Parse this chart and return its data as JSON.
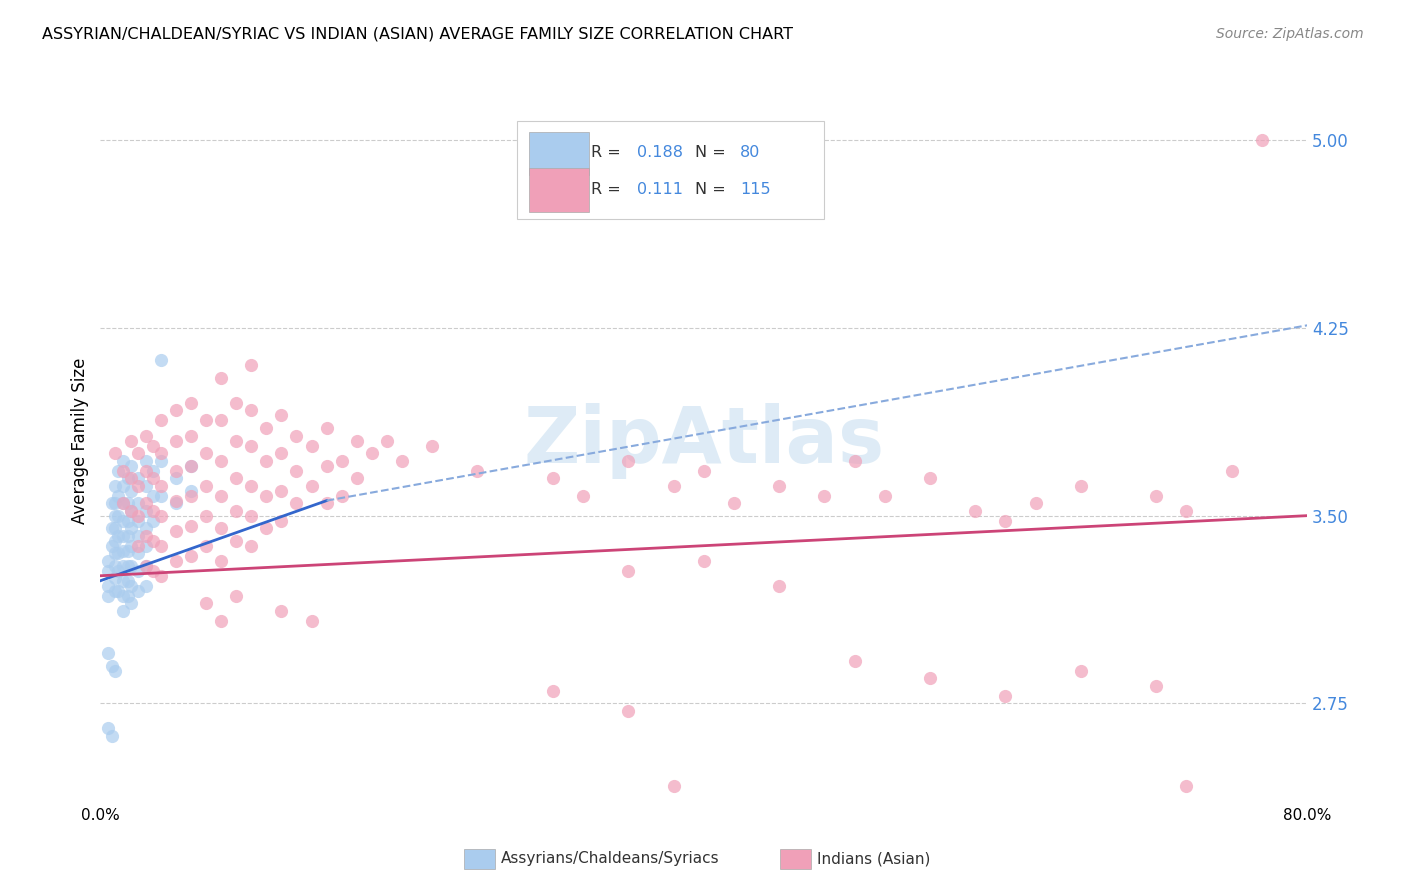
{
  "title": "ASSYRIAN/CHALDEAN/SYRIAC VS INDIAN (ASIAN) AVERAGE FAMILY SIZE CORRELATION CHART",
  "source": "Source: ZipAtlas.com",
  "ylabel": "Average Family Size",
  "ytick_labels": [
    "2.75",
    "3.50",
    "4.25",
    "5.00"
  ],
  "ytick_vals": [
    2.75,
    3.5,
    4.25,
    5.0
  ],
  "xlim": [
    0.0,
    0.8
  ],
  "ylim": [
    2.35,
    5.25
  ],
  "watermark": "ZipAtlas",
  "blue_color": "#aaccee",
  "pink_color": "#f0a0b8",
  "blue_solid_color": "#3366cc",
  "blue_dash_color": "#88aadd",
  "pink_line_color": "#cc4477",
  "blue_scatter": [
    [
      0.005,
      3.32
    ],
    [
      0.005,
      3.28
    ],
    [
      0.005,
      3.22
    ],
    [
      0.005,
      3.18
    ],
    [
      0.008,
      3.55
    ],
    [
      0.008,
      3.45
    ],
    [
      0.008,
      3.38
    ],
    [
      0.01,
      3.62
    ],
    [
      0.01,
      3.55
    ],
    [
      0.01,
      3.5
    ],
    [
      0.01,
      3.45
    ],
    [
      0.01,
      3.4
    ],
    [
      0.01,
      3.35
    ],
    [
      0.01,
      3.3
    ],
    [
      0.01,
      3.25
    ],
    [
      0.01,
      3.2
    ],
    [
      0.012,
      3.68
    ],
    [
      0.012,
      3.58
    ],
    [
      0.012,
      3.5
    ],
    [
      0.012,
      3.42
    ],
    [
      0.012,
      3.35
    ],
    [
      0.012,
      3.28
    ],
    [
      0.012,
      3.2
    ],
    [
      0.015,
      3.72
    ],
    [
      0.015,
      3.62
    ],
    [
      0.015,
      3.55
    ],
    [
      0.015,
      3.48
    ],
    [
      0.015,
      3.42
    ],
    [
      0.015,
      3.36
    ],
    [
      0.015,
      3.3
    ],
    [
      0.015,
      3.24
    ],
    [
      0.015,
      3.18
    ],
    [
      0.015,
      3.12
    ],
    [
      0.018,
      3.65
    ],
    [
      0.018,
      3.55
    ],
    [
      0.018,
      3.48
    ],
    [
      0.018,
      3.42
    ],
    [
      0.018,
      3.36
    ],
    [
      0.018,
      3.3
    ],
    [
      0.018,
      3.24
    ],
    [
      0.018,
      3.18
    ],
    [
      0.02,
      3.7
    ],
    [
      0.02,
      3.6
    ],
    [
      0.02,
      3.52
    ],
    [
      0.02,
      3.45
    ],
    [
      0.02,
      3.38
    ],
    [
      0.02,
      3.3
    ],
    [
      0.02,
      3.22
    ],
    [
      0.02,
      3.15
    ],
    [
      0.025,
      3.65
    ],
    [
      0.025,
      3.55
    ],
    [
      0.025,
      3.48
    ],
    [
      0.025,
      3.42
    ],
    [
      0.025,
      3.35
    ],
    [
      0.025,
      3.28
    ],
    [
      0.025,
      3.2
    ],
    [
      0.03,
      3.72
    ],
    [
      0.03,
      3.62
    ],
    [
      0.03,
      3.52
    ],
    [
      0.03,
      3.45
    ],
    [
      0.03,
      3.38
    ],
    [
      0.03,
      3.3
    ],
    [
      0.03,
      3.22
    ],
    [
      0.035,
      3.68
    ],
    [
      0.035,
      3.58
    ],
    [
      0.035,
      3.48
    ],
    [
      0.04,
      4.12
    ],
    [
      0.04,
      3.72
    ],
    [
      0.04,
      3.58
    ],
    [
      0.05,
      3.65
    ],
    [
      0.05,
      3.55
    ],
    [
      0.06,
      3.7
    ],
    [
      0.06,
      3.6
    ],
    [
      0.005,
      2.95
    ],
    [
      0.008,
      2.9
    ],
    [
      0.01,
      2.88
    ],
    [
      0.005,
      2.65
    ],
    [
      0.008,
      2.62
    ]
  ],
  "pink_scatter": [
    [
      0.01,
      3.75
    ],
    [
      0.015,
      3.68
    ],
    [
      0.015,
      3.55
    ],
    [
      0.02,
      3.8
    ],
    [
      0.02,
      3.65
    ],
    [
      0.02,
      3.52
    ],
    [
      0.025,
      3.75
    ],
    [
      0.025,
      3.62
    ],
    [
      0.025,
      3.5
    ],
    [
      0.025,
      3.38
    ],
    [
      0.03,
      3.82
    ],
    [
      0.03,
      3.68
    ],
    [
      0.03,
      3.55
    ],
    [
      0.03,
      3.42
    ],
    [
      0.03,
      3.3
    ],
    [
      0.035,
      3.78
    ],
    [
      0.035,
      3.65
    ],
    [
      0.035,
      3.52
    ],
    [
      0.035,
      3.4
    ],
    [
      0.035,
      3.28
    ],
    [
      0.04,
      3.88
    ],
    [
      0.04,
      3.75
    ],
    [
      0.04,
      3.62
    ],
    [
      0.04,
      3.5
    ],
    [
      0.04,
      3.38
    ],
    [
      0.04,
      3.26
    ],
    [
      0.05,
      3.92
    ],
    [
      0.05,
      3.8
    ],
    [
      0.05,
      3.68
    ],
    [
      0.05,
      3.56
    ],
    [
      0.05,
      3.44
    ],
    [
      0.05,
      3.32
    ],
    [
      0.06,
      3.95
    ],
    [
      0.06,
      3.82
    ],
    [
      0.06,
      3.7
    ],
    [
      0.06,
      3.58
    ],
    [
      0.06,
      3.46
    ],
    [
      0.06,
      3.34
    ],
    [
      0.07,
      3.88
    ],
    [
      0.07,
      3.75
    ],
    [
      0.07,
      3.62
    ],
    [
      0.07,
      3.5
    ],
    [
      0.07,
      3.38
    ],
    [
      0.08,
      4.05
    ],
    [
      0.08,
      3.88
    ],
    [
      0.08,
      3.72
    ],
    [
      0.08,
      3.58
    ],
    [
      0.08,
      3.45
    ],
    [
      0.08,
      3.32
    ],
    [
      0.09,
      3.95
    ],
    [
      0.09,
      3.8
    ],
    [
      0.09,
      3.65
    ],
    [
      0.09,
      3.52
    ],
    [
      0.09,
      3.4
    ],
    [
      0.1,
      4.1
    ],
    [
      0.1,
      3.92
    ],
    [
      0.1,
      3.78
    ],
    [
      0.1,
      3.62
    ],
    [
      0.1,
      3.5
    ],
    [
      0.1,
      3.38
    ],
    [
      0.11,
      3.85
    ],
    [
      0.11,
      3.72
    ],
    [
      0.11,
      3.58
    ],
    [
      0.11,
      3.45
    ],
    [
      0.12,
      3.9
    ],
    [
      0.12,
      3.75
    ],
    [
      0.12,
      3.6
    ],
    [
      0.12,
      3.48
    ],
    [
      0.13,
      3.82
    ],
    [
      0.13,
      3.68
    ],
    [
      0.13,
      3.55
    ],
    [
      0.14,
      3.78
    ],
    [
      0.14,
      3.62
    ],
    [
      0.15,
      3.85
    ],
    [
      0.15,
      3.7
    ],
    [
      0.15,
      3.55
    ],
    [
      0.16,
      3.72
    ],
    [
      0.16,
      3.58
    ],
    [
      0.17,
      3.8
    ],
    [
      0.17,
      3.65
    ],
    [
      0.18,
      3.75
    ],
    [
      0.19,
      3.8
    ],
    [
      0.2,
      3.72
    ],
    [
      0.22,
      3.78
    ],
    [
      0.25,
      3.68
    ],
    [
      0.07,
      3.15
    ],
    [
      0.08,
      3.08
    ],
    [
      0.09,
      3.18
    ],
    [
      0.12,
      3.12
    ],
    [
      0.14,
      3.08
    ],
    [
      0.3,
      3.65
    ],
    [
      0.32,
      3.58
    ],
    [
      0.35,
      3.72
    ],
    [
      0.38,
      3.62
    ],
    [
      0.4,
      3.68
    ],
    [
      0.42,
      3.55
    ],
    [
      0.45,
      3.62
    ],
    [
      0.48,
      3.58
    ],
    [
      0.5,
      3.72
    ],
    [
      0.52,
      3.58
    ],
    [
      0.55,
      3.65
    ],
    [
      0.58,
      3.52
    ],
    [
      0.6,
      3.48
    ],
    [
      0.62,
      3.55
    ],
    [
      0.65,
      3.62
    ],
    [
      0.7,
      3.58
    ],
    [
      0.72,
      3.52
    ],
    [
      0.75,
      3.68
    ],
    [
      0.35,
      3.28
    ],
    [
      0.4,
      3.32
    ],
    [
      0.45,
      3.22
    ],
    [
      0.5,
      2.92
    ],
    [
      0.55,
      2.85
    ],
    [
      0.6,
      2.78
    ],
    [
      0.65,
      2.88
    ],
    [
      0.7,
      2.82
    ],
    [
      0.3,
      2.8
    ],
    [
      0.35,
      2.72
    ],
    [
      0.38,
      2.42
    ],
    [
      0.72,
      2.42
    ],
    [
      0.77,
      5.0
    ]
  ],
  "blue_solid_line": [
    [
      0.0,
      3.24
    ],
    [
      0.15,
      3.56
    ]
  ],
  "blue_dash_line": [
    [
      0.15,
      3.56
    ],
    [
      0.8,
      4.26
    ]
  ],
  "pink_line": [
    [
      0.0,
      3.26
    ],
    [
      0.8,
      3.5
    ]
  ]
}
